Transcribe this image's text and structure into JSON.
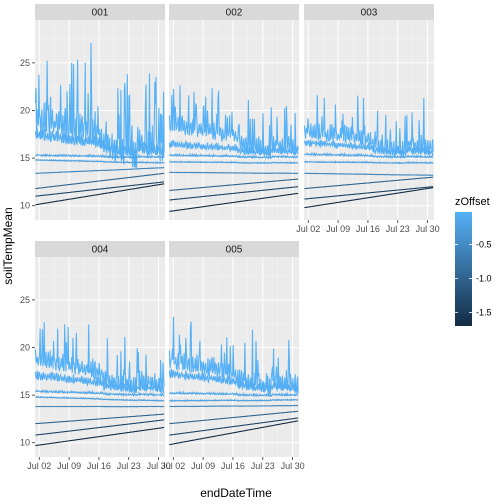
{
  "chart_data": {
    "type": "line",
    "facet_by": "plot",
    "panels": [
      "001",
      "002",
      "003",
      "004",
      "005"
    ],
    "xlabel": "endDateTime",
    "ylabel": "soilTempMean",
    "x_ticks": [
      "Jul 02",
      "Jul 09",
      "Jul 16",
      "Jul 23",
      "Jul 30"
    ],
    "x_tick_days": [
      2,
      9,
      16,
      23,
      30
    ],
    "xlim_days": [
      1,
      31.5
    ],
    "y_ticks": [
      10,
      15,
      20,
      25
    ],
    "ylim": [
      8.5,
      29.5
    ],
    "legend": {
      "title": "zOffset",
      "ticks": [
        -0.5,
        -1.0,
        -1.5
      ],
      "tick_labels": [
        "-0.5",
        "-1.0",
        "-1.5"
      ],
      "range": [
        -1.7,
        -0.02
      ],
      "color_low": "#132B43",
      "color_high": "#56B1F7"
    },
    "series": [
      {
        "zOffset": -0.02,
        "start": [
          19.0,
          18.5,
          17.8,
          18.8,
          18.6
        ],
        "end": [
          16.0,
          16.0,
          16.0,
          16.0,
          16.0
        ],
        "amp": [
          5.0,
          2.6,
          2.6,
          2.8,
          3.0
        ]
      },
      {
        "zOffset": -0.06,
        "start": [
          17.4,
          16.4,
          16.6,
          17.0,
          17.2
        ],
        "end": [
          15.6,
          15.6,
          15.6,
          15.6,
          15.6
        ],
        "amp": [
          1.6,
          1.0,
          1.0,
          1.3,
          1.2
        ]
      },
      {
        "zOffset": -0.16,
        "start": [
          15.3,
          15.3,
          15.4,
          15.4,
          15.2
        ],
        "end": [
          15.1,
          15.1,
          15.1,
          15.0,
          15.0
        ],
        "amp": [
          0.3,
          0.3,
          0.3,
          0.3,
          0.3
        ]
      },
      {
        "zOffset": -0.26,
        "start": [
          14.8,
          14.6,
          14.6,
          14.8,
          14.4
        ],
        "end": [
          14.5,
          14.5,
          14.5,
          14.4,
          14.5
        ],
        "amp": [
          0.15,
          0.15,
          0.15,
          0.15,
          0.15
        ]
      },
      {
        "zOffset": -0.56,
        "start": [
          13.4,
          13.5,
          13.4,
          13.8,
          13.8
        ],
        "end": [
          14.0,
          13.4,
          13.2,
          13.8,
          13.9
        ],
        "amp": [
          0.05,
          0.05,
          0.05,
          0.05,
          0.05
        ]
      },
      {
        "zOffset": -0.96,
        "start": [
          11.8,
          11.6,
          11.8,
          12.0,
          12.0
        ],
        "end": [
          13.4,
          12.8,
          13.0,
          13.0,
          13.3
        ],
        "amp": [
          0,
          0,
          0,
          0,
          0
        ]
      },
      {
        "zOffset": -1.36,
        "start": [
          11.0,
          10.6,
          10.7,
          10.8,
          10.8
        ],
        "end": [
          12.5,
          12.0,
          12.0,
          12.4,
          12.6
        ],
        "amp": [
          0,
          0,
          0,
          0,
          0
        ]
      },
      {
        "zOffset": -1.66,
        "start": [
          10.1,
          9.4,
          9.8,
          9.7,
          9.8
        ],
        "end": [
          12.3,
          11.3,
          11.9,
          11.6,
          12.3
        ],
        "amp": [
          0,
          0,
          0,
          0,
          0
        ]
      }
    ]
  }
}
